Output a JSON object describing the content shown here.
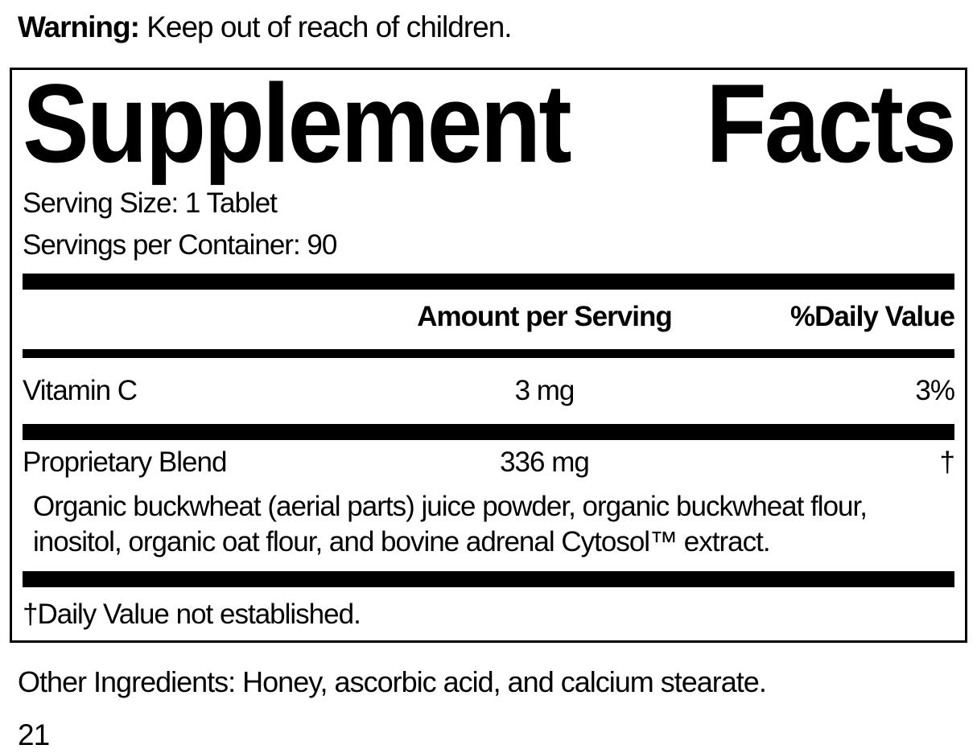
{
  "warning": {
    "label": "Warning:",
    "text": " Keep out of reach of children."
  },
  "panel": {
    "title_words": [
      "Supplement",
      "Facts"
    ],
    "serving_size": "Serving Size: 1 Tablet",
    "servings_per_container": "Servings per Container: 90",
    "header": {
      "amount": "Amount per Serving",
      "daily_value": "%Daily Value"
    },
    "rows": [
      {
        "name": "Vitamin C",
        "amount": "3 mg",
        "dv": "3%"
      },
      {
        "name": "Proprietary Blend",
        "amount": "336 mg",
        "dv": "†",
        "description": "Organic buckwheat (aerial parts) juice powder, organic buckwheat flour, inositol, organic oat flour, and bovine adrenal Cytosol™ extract."
      }
    ],
    "footnote": "†Daily Value not established."
  },
  "other_ingredients": "Other Ingredients: Honey, ascorbic acid, and calcium stearate.",
  "page_number": "21",
  "colors": {
    "text": "#000000",
    "background": "#ffffff",
    "bar": "#000000"
  }
}
